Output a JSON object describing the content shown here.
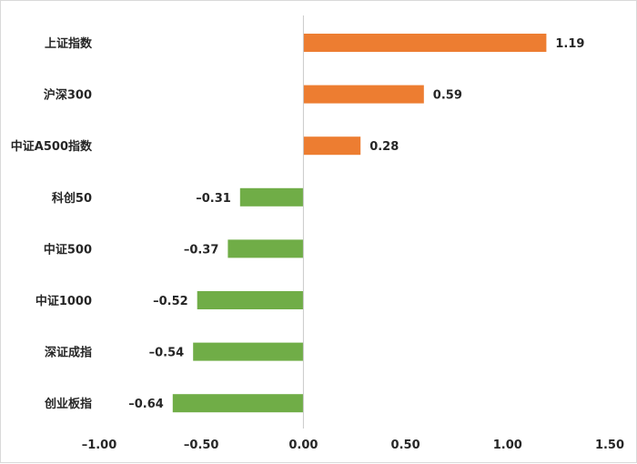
{
  "chart_data": {
    "type": "bar",
    "orientation": "horizontal",
    "title": "",
    "xlabel": "",
    "ylabel": "",
    "categories": [
      "上证指数",
      "沪深300",
      "中证A500指数",
      "科创50",
      "中证500",
      "中证1000",
      "深证成指",
      "创业板指"
    ],
    "values": [
      1.19,
      0.59,
      0.28,
      -0.31,
      -0.37,
      -0.52,
      -0.54,
      -0.64
    ],
    "value_labels": [
      "1.19",
      "0.59",
      "0.28",
      "–0.31",
      "–0.37",
      "–0.52",
      "–0.54",
      "–0.64"
    ],
    "xlim": [
      -1.0,
      1.5
    ],
    "x_ticks": [
      -1.0,
      -0.5,
      0.0,
      0.5,
      1.0,
      1.5
    ],
    "x_tick_labels": [
      "–1.00",
      "–0.50",
      "0.00",
      "0.50",
      "1.00",
      "1.50"
    ],
    "grid": false,
    "legend": "none",
    "colors": {
      "positive": "#ED7D31",
      "negative": "#70AD47"
    }
  }
}
